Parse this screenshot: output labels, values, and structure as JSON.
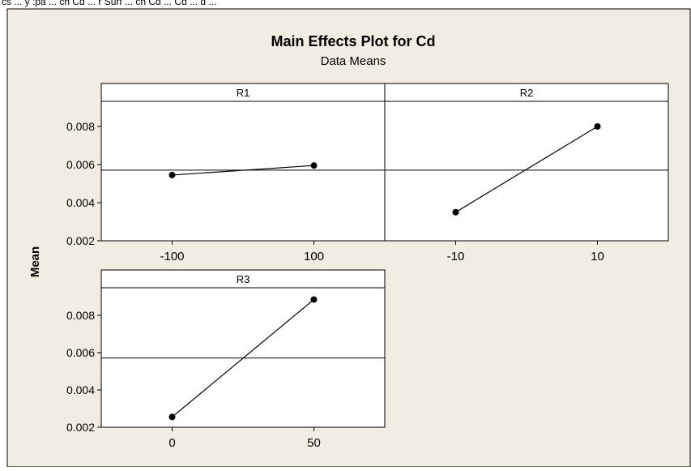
{
  "top_caption": "cs ... y :pa ... ch Cd ... r Surf ... ch Cd ... Cd ... d ...",
  "colors": {
    "background": "#f1ede3",
    "plot_area": "#ffffff",
    "frame": "#000000",
    "mean_line": "#000000"
  },
  "chart_data": {
    "type": "line",
    "title": "Main Effects Plot for Cd",
    "subtitle": "Data Means",
    "ylabel": "Mean",
    "ylim": [
      0.002,
      0.0095
    ],
    "yticks": [
      0.002,
      0.004,
      0.006,
      0.008
    ],
    "ytick_labels": [
      "0.002",
      "0.004",
      "0.006",
      "0.008"
    ],
    "overall_mean": 0.00571,
    "grid": false,
    "panels": [
      {
        "name": "R1",
        "x": [
          -100,
          100
        ],
        "x_labels": [
          "-100",
          "100"
        ],
        "y": [
          0.00545,
          0.00595
        ]
      },
      {
        "name": "R2",
        "x": [
          -10,
          10
        ],
        "x_labels": [
          "-10",
          "10"
        ],
        "y": [
          0.0035,
          0.008
        ]
      },
      {
        "name": "R3",
        "x": [
          0,
          50
        ],
        "x_labels": [
          "0",
          "50"
        ],
        "y": [
          0.00255,
          0.00885
        ]
      }
    ]
  }
}
